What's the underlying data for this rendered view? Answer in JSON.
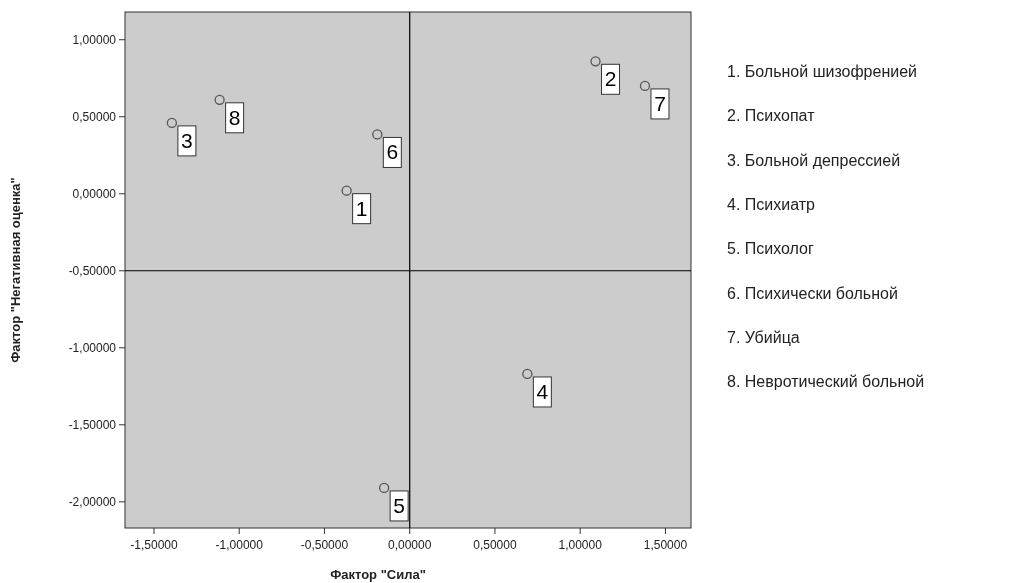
{
  "chart_data": {
    "type": "scatter",
    "xlabel": "Фактор \"Сила\"",
    "ylabel": "Фактор \"Негативная оценка\"",
    "x": [
      -0.37,
      1.09,
      -1.395,
      0.69,
      -0.15,
      -0.19,
      1.38,
      -1.115
    ],
    "values": [
      0.02,
      0.86,
      0.46,
      -1.17,
      -1.91,
      0.385,
      0.7,
      0.61
    ],
    "color": "#555555",
    "marker": "circle",
    "grid": false,
    "xlim": [
      -1.67,
      1.65
    ],
    "ylim": [
      -2.17,
      1.18
    ],
    "xticks": [
      {
        "value": -1.5,
        "label": "-1,50000"
      },
      {
        "value": -1,
        "label": "-1,00000"
      },
      {
        "value": -0.5,
        "label": "-0,50000"
      },
      {
        "value": 0,
        "label": "0,00000"
      },
      {
        "value": 0.5,
        "label": "0,50000"
      },
      {
        "value": 1,
        "label": "1,00000"
      },
      {
        "value": 1.5,
        "label": "1,50000"
      }
    ],
    "yticks": [
      {
        "value": -2,
        "label": "-2,00000"
      },
      {
        "value": -1.5,
        "label": "-1,50000"
      },
      {
        "value": -1,
        "label": "-1,00000"
      },
      {
        "value": -0.5,
        "label": "-0,50000"
      },
      {
        "value": 0,
        "label": "0,00000"
      },
      {
        "value": 0.5,
        "label": "0,50000"
      },
      {
        "value": 1,
        "label": "1,00000"
      }
    ],
    "ref_lines": [
      {
        "axis": "x",
        "value": 0,
        "color": "#000000"
      },
      {
        "axis": "y",
        "value": -0.5,
        "color": "#000000"
      }
    ],
    "annotations": [
      {
        "text": "1",
        "x": -0.37,
        "y": 0.02
      },
      {
        "text": "2",
        "x": 1.09,
        "y": 0.86
      },
      {
        "text": "3",
        "x": -1.395,
        "y": 0.46
      },
      {
        "text": "4",
        "x": 0.69,
        "y": -1.17
      },
      {
        "text": "5",
        "x": -0.15,
        "y": -1.91
      },
      {
        "text": "6",
        "x": -0.19,
        "y": 0.385
      },
      {
        "text": "7",
        "x": 1.38,
        "y": 0.7
      },
      {
        "text": "8",
        "x": -1.115,
        "y": 0.61
      },
      "1. Больной шизофренией",
      "2. Психопат",
      "3. Больной депрессией",
      "4. Психиатр",
      "5. Психолог",
      "6. Психически больной",
      "7. Убийца",
      "8. Невротический больной"
    ]
  }
}
